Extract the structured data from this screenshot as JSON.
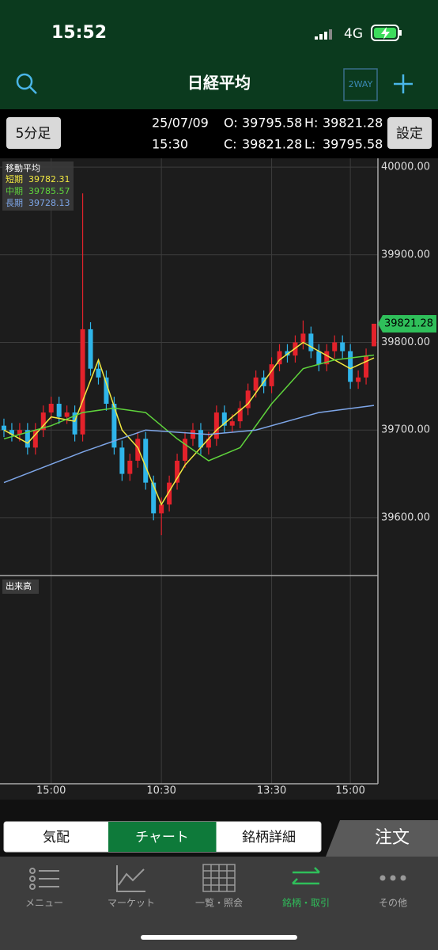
{
  "status_bar": {
    "time": "15:52",
    "network": "4G"
  },
  "header": {
    "title": "日経平均",
    "badge": "2WAY"
  },
  "info": {
    "interval": "5分足",
    "date": "25/07/09",
    "time": "15:30",
    "open_label": "O:",
    "high_label": "H:",
    "close_label": "C:",
    "low_label": "L:",
    "settings": "設定"
  },
  "chart_data": {
    "type": "candlestick",
    "legend_title": "移動平均",
    "volume_label": "出来高",
    "xlim": [
      0,
      48
    ],
    "xticks": [
      {
        "value": 6,
        "label": "15:00"
      },
      {
        "value": 20,
        "label": "10:30"
      },
      {
        "value": 34,
        "label": "13:30"
      },
      {
        "value": 44,
        "label": "15:00"
      }
    ],
    "ylim": [
      39534,
      40010
    ],
    "yticks": [
      {
        "value": 39600,
        "label": "39600.00"
      },
      {
        "value": 39700,
        "label": "39700.00"
      },
      {
        "value": 39800,
        "label": "39800.00"
      },
      {
        "value": 39900,
        "label": "39900.00"
      },
      {
        "value": 40000,
        "label": "40000.00"
      }
    ],
    "grid": true,
    "up_color": "#e3222b",
    "down_color": "#2fb5ea",
    "open": [
      39705,
      39700,
      39695,
      39700,
      39680,
      39700,
      39720,
      39730,
      39715,
      39720,
      39695,
      39815,
      39770,
      39760,
      39730,
      39680,
      39650,
      39665,
      39690,
      39640,
      39605,
      39615,
      39640,
      39665,
      39690,
      39700,
      39680,
      39690,
      39720,
      39705,
      39710,
      39725,
      39745,
      39760,
      39750,
      39775,
      39790,
      39785,
      39800,
      39810,
      39790,
      39775,
      39790,
      39800,
      39790,
      39755,
      39760,
      39795.58
    ],
    "high": [
      39713,
      39708,
      39708,
      39708,
      39708,
      39728,
      39738,
      39738,
      39728,
      39728,
      39970,
      39823,
      39778,
      39768,
      39738,
      39688,
      39673,
      39698,
      39698,
      39648,
      39623,
      39648,
      39673,
      39698,
      39708,
      39708,
      39698,
      39728,
      39728,
      39718,
      39733,
      39753,
      39768,
      39768,
      39783,
      39798,
      39798,
      39808,
      39825,
      39818,
      39798,
      39798,
      39808,
      39808,
      39798,
      39768,
      39793,
      39821.28
    ],
    "low": [
      39692,
      39687,
      39687,
      39672,
      39672,
      39692,
      39712,
      39707,
      39707,
      39687,
      39687,
      39762,
      39752,
      39722,
      39672,
      39642,
      39642,
      39657,
      39632,
      39597,
      39580,
      39607,
      39632,
      39657,
      39682,
      39672,
      39672,
      39682,
      39697,
      39697,
      39702,
      39717,
      39737,
      39742,
      39742,
      39767,
      39777,
      39777,
      39792,
      39782,
      39767,
      39767,
      39782,
      39782,
      39747,
      39747,
      39752,
      39795.58
    ],
    "close": [
      39700,
      39695,
      39700,
      39680,
      39700,
      39720,
      39730,
      39715,
      39720,
      39695,
      39815,
      39770,
      39760,
      39730,
      39680,
      39650,
      39665,
      39690,
      39640,
      39605,
      39615,
      39640,
      39665,
      39690,
      39700,
      39680,
      39690,
      39720,
      39705,
      39710,
      39725,
      39745,
      39760,
      39750,
      39775,
      39790,
      39785,
      39800,
      39810,
      39790,
      39775,
      39790,
      39800,
      39790,
      39755,
      39760,
      39785,
      39821.28
    ],
    "series": [
      {
        "name": "短期",
        "color": "#f2e940",
        "x": [
          0,
          3,
          6,
          9,
          12,
          15,
          17,
          20,
          23,
          27,
          31,
          35,
          38,
          41,
          44,
          47
        ],
        "values": [
          39700,
          39685,
          39715,
          39710,
          39780,
          39700,
          39680,
          39615,
          39660,
          39700,
          39730,
          39780,
          39800,
          39785,
          39770,
          39782.31
        ]
      },
      {
        "name": "中期",
        "color": "#5fd43c",
        "x": [
          0,
          6,
          10,
          14,
          18,
          22,
          26,
          30,
          34,
          38,
          42,
          47
        ],
        "values": [
          39690,
          39705,
          39720,
          39725,
          39720,
          39690,
          39665,
          39680,
          39730,
          39770,
          39780,
          39785.57
        ]
      },
      {
        "name": "長期",
        "color": "#7ea6e8",
        "x": [
          0,
          10,
          18,
          26,
          32,
          40,
          47
        ],
        "values": [
          39640,
          39675,
          39700,
          39695,
          39700,
          39720,
          39728.13
        ]
      }
    ]
  },
  "tabs": [
    "気配",
    "チャート",
    "銘柄詳細"
  ],
  "order": "注文",
  "nav": [
    "メニュー",
    "マーケット",
    "一覧・照会",
    "銘柄・取引",
    "その他"
  ]
}
